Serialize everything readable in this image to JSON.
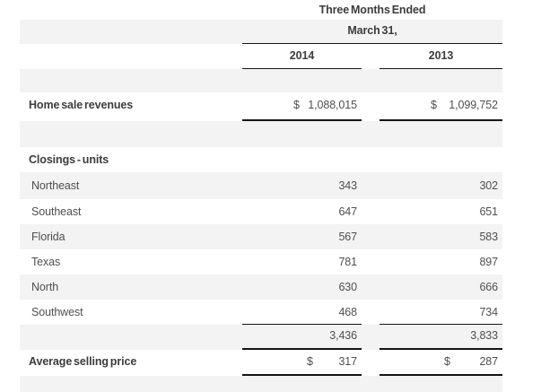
{
  "header": {
    "period": "Three Months Ended",
    "date": "March 31,",
    "col_2014": "2014",
    "col_2013": "2013"
  },
  "revenues": {
    "label": "Home sale revenues",
    "currency": "$",
    "v2014": "1,088,015",
    "v2013": "1,099,752"
  },
  "closings": {
    "section_label": "Closings - units",
    "regions": [
      {
        "label": "Northeast",
        "v2014": "343",
        "v2013": "302"
      },
      {
        "label": "Southeast",
        "v2014": "647",
        "v2013": "651"
      },
      {
        "label": "Florida",
        "v2014": "567",
        "v2013": "583"
      },
      {
        "label": "Texas",
        "v2014": "781",
        "v2013": "897"
      },
      {
        "label": "North",
        "v2014": "630",
        "v2013": "666"
      },
      {
        "label": "Southwest",
        "v2014": "468",
        "v2013": "734"
      }
    ],
    "total": {
      "v2014": "3,436",
      "v2013": "3,833"
    }
  },
  "average_selling_price": {
    "label": "Average selling price",
    "currency": "$",
    "v2014": "317",
    "v2013": "287"
  },
  "colors": {
    "stripe": "#f3f3f3",
    "border": "#141414",
    "text_bold": "#3c3c3c",
    "text": "#4f4f4f"
  }
}
